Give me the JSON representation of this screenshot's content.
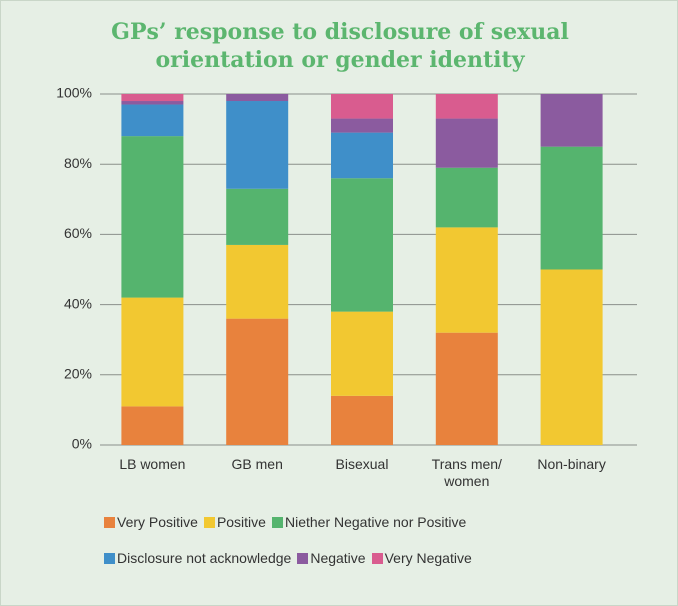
{
  "chart_data": {
    "type": "stacked_bar",
    "title": [
      "GPs’ response to disclosure of sexual",
      "orientation or gender identity"
    ],
    "categories": [
      "LB women",
      "GB men",
      "Bisexual",
      "Trans men/ women",
      "Non-binary"
    ],
    "series": [
      {
        "name": "Very Positive",
        "color": "#e8823d",
        "values": [
          11,
          36,
          14,
          32,
          0
        ]
      },
      {
        "name": "Positive",
        "color": "#f2c831",
        "values": [
          31,
          21,
          24,
          30,
          50
        ]
      },
      {
        "name": "Niether Negative nor Positive",
        "color": "#55b46e",
        "values": [
          46,
          16,
          38,
          17,
          35
        ]
      },
      {
        "name": "Disclosure not acknowledge",
        "color": "#3f8fc9",
        "values": [
          9,
          25,
          13,
          0,
          0
        ]
      },
      {
        "name": "Negative",
        "color": "#8b5b9f",
        "values": [
          1,
          2,
          4,
          14,
          15
        ]
      },
      {
        "name": "Very Negative",
        "color": "#d95c8f",
        "values": [
          2,
          0,
          7,
          7,
          0
        ]
      }
    ],
    "ylim": [
      0,
      100
    ],
    "yticks": [
      {
        "value": 0,
        "label": "0%"
      },
      {
        "value": 20,
        "label": "20%"
      },
      {
        "value": 40,
        "label": "40%"
      },
      {
        "value": 60,
        "label": "60%"
      },
      {
        "value": 80,
        "label": "80%"
      },
      {
        "value": 100,
        "label": "100%"
      }
    ],
    "grid": true
  }
}
